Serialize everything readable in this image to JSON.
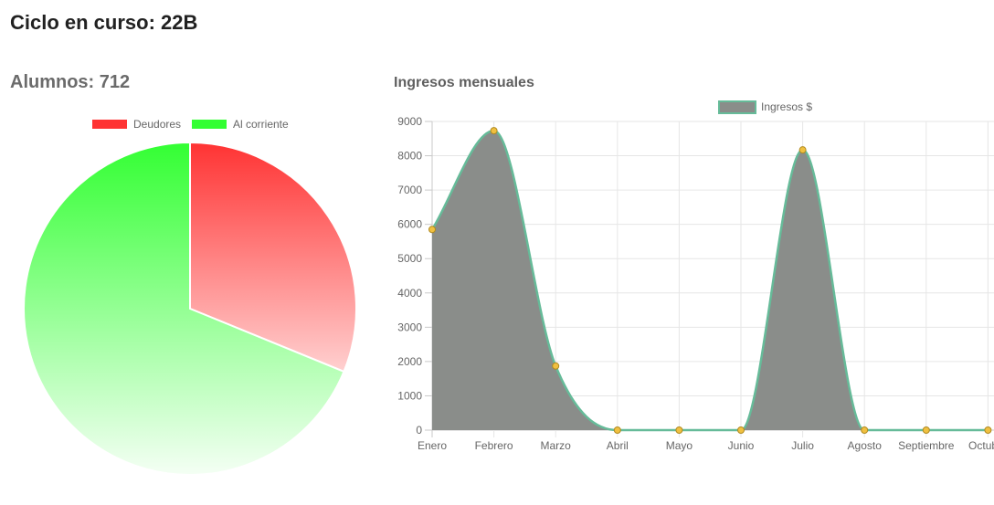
{
  "page": {
    "title": "Ciclo en curso: 22B",
    "students_title": "Alumnos: 712",
    "income_title": "Ingresos mensuales"
  },
  "chart_data": [
    {
      "type": "pie",
      "title": "",
      "legend_position": "top",
      "slices": [
        {
          "label": "Deudores",
          "value": 222,
          "color": "#ff3333",
          "color_light": "#ffd0d0"
        },
        {
          "label": "Al corriente",
          "value": 490,
          "color": "#33ff33",
          "color_light": "#f4fff4"
        }
      ]
    },
    {
      "type": "area",
      "title": "",
      "xlabel": "",
      "ylabel": "",
      "legend_position": "top",
      "grid": true,
      "categories": [
        "Enero",
        "Febrero",
        "Marzo",
        "Abril",
        "Mayo",
        "Junio",
        "Julio",
        "Agosto",
        "Septiembre",
        "Octubre"
      ],
      "ylim": [
        0,
        9000
      ],
      "yticks": [
        "0",
        "1000",
        "2000",
        "3000",
        "4000",
        "5000",
        "6000",
        "7000",
        "8000",
        "9000"
      ],
      "series": [
        {
          "name": "Ingresos $",
          "values": [
            5850,
            8730,
            1870,
            0,
            0,
            0,
            8170,
            0,
            0,
            0
          ],
          "fill_color": "#8a8d8a",
          "line_color": "#66bb99",
          "point_color": "#f0c040"
        }
      ]
    }
  ]
}
